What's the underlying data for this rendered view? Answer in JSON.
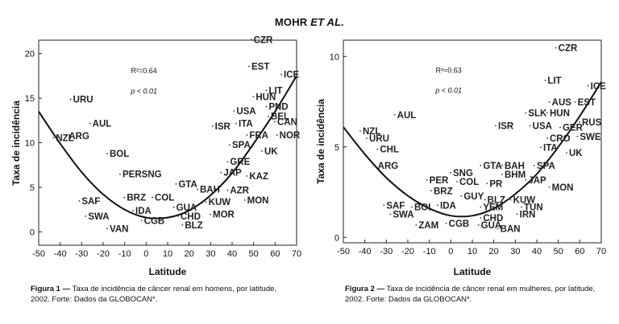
{
  "header": {
    "authors": "MOHR",
    "etal": "ET AL."
  },
  "captions": [
    {
      "label": "Figura 1 —",
      "text": "Taxa de incidência de câncer renal em homens, por latitude, 2002. Forte: Dados da GLOBOCAN*."
    },
    {
      "label": "Figura 2 —",
      "text": "Taxa de incidência de câncer renal em mulheres, por latitude, 2002. Forte: Dados da GLOBOCAN*."
    }
  ],
  "chart_data": [
    {
      "type": "scatter",
      "xlabel": "Latitude",
      "ylabel": "Taxa de incidência",
      "xlim": [
        -50,
        70
      ],
      "ylim": [
        -1.5,
        21.5
      ],
      "xticks": [
        -50,
        -40,
        -30,
        -20,
        -10,
        0,
        10,
        20,
        30,
        40,
        50,
        60,
        70
      ],
      "yticks": [
        0,
        5,
        10,
        15,
        20
      ],
      "stats": {
        "r2": "R²=0.64",
        "p": "p < 0.01"
      },
      "fit_curve": {
        "x": [
          -50,
          -40,
          -30,
          -20,
          -10,
          0,
          10,
          20,
          30,
          40,
          50,
          60,
          70
        ],
        "y": [
          13.5,
          9.9,
          6.7,
          4.2,
          2.5,
          1.6,
          1.6,
          2.4,
          4.1,
          6.6,
          9.9,
          13.5,
          17.5
        ]
      },
      "labeled_points": [
        {
          "label": "CZR",
          "x": 50,
          "y": 21.2
        },
        {
          "label": "EST",
          "x": 49,
          "y": 18.2
        },
        {
          "label": "ICE",
          "x": 64,
          "y": 17.3
        },
        {
          "label": "LIT",
          "x": 57,
          "y": 15.5
        },
        {
          "label": "HUN",
          "x": 51,
          "y": 14.8
        },
        {
          "label": "PND",
          "x": 57,
          "y": 13.7
        },
        {
          "label": "USA",
          "x": 42,
          "y": 13.2
        },
        {
          "label": "BEL",
          "x": 58,
          "y": 12.6
        },
        {
          "label": "CAN",
          "x": 61,
          "y": 12.0
        },
        {
          "label": "ISR",
          "x": 32,
          "y": 11.5
        },
        {
          "label": "ITA",
          "x": 43,
          "y": 11.8
        },
        {
          "label": "FRA",
          "x": 48,
          "y": 10.5
        },
        {
          "label": "NOR",
          "x": 62,
          "y": 10.5
        },
        {
          "label": "SPA",
          "x": 40,
          "y": 9.4
        },
        {
          "label": "UK",
          "x": 55,
          "y": 8.7
        },
        {
          "label": "GRE",
          "x": 39,
          "y": 7.5
        },
        {
          "label": "JAP",
          "x": 36,
          "y": 6.3
        },
        {
          "label": "KAZ",
          "x": 48,
          "y": 5.9
        },
        {
          "label": "GTA",
          "x": 15,
          "y": 5.0
        },
        {
          "label": "BAH",
          "x": 25,
          "y": 4.4
        },
        {
          "label": "AZR",
          "x": 39,
          "y": 4.3
        },
        {
          "label": "KUW",
          "x": 29,
          "y": 3.0
        },
        {
          "label": "MON",
          "x": 47,
          "y": 3.2
        },
        {
          "label": "GUA",
          "x": 14,
          "y": 2.4
        },
        {
          "label": "CHD",
          "x": 16,
          "y": 1.4
        },
        {
          "label": "MOR",
          "x": 31,
          "y": 1.6
        },
        {
          "label": "BLZ",
          "x": 18,
          "y": 0.4
        },
        {
          "label": "CGB",
          "x": -1,
          "y": 0.9
        },
        {
          "label": "IDA",
          "x": -5,
          "y": 2.0
        },
        {
          "label": "BRZ",
          "x": -9,
          "y": 3.5
        },
        {
          "label": "COL",
          "x": 4,
          "y": 3.5
        },
        {
          "label": "PERSNG",
          "x": -11,
          "y": 6.1
        },
        {
          "label": "BOL",
          "x": -17,
          "y": 8.4
        },
        {
          "label": "AUL",
          "x": -25,
          "y": 11.8
        },
        {
          "label": "NZL",
          "x": -42,
          "y": 10.2
        },
        {
          "label": "ARG",
          "x": -36,
          "y": 10.4
        },
        {
          "label": "URU",
          "x": -34,
          "y": 14.5
        },
        {
          "label": "SAF",
          "x": -30,
          "y": 3.1
        },
        {
          "label": "SWA",
          "x": -27,
          "y": 1.4
        },
        {
          "label": "VAN",
          "x": -17,
          "y": 0.0
        }
      ]
    },
    {
      "type": "scatter",
      "xlabel": "Latitude",
      "ylabel": "Taxa de incidência",
      "xlim": [
        -50,
        70
      ],
      "ylim": [
        -0.3,
        10.9
      ],
      "xticks": [
        -50,
        -40,
        -30,
        -20,
        -10,
        0,
        10,
        20,
        30,
        40,
        50,
        60,
        70
      ],
      "yticks": [
        0,
        5,
        10
      ],
      "stats": {
        "r2": "R²=0.63",
        "p": "p < 0.01"
      },
      "fit_curve": {
        "x": [
          -50,
          -40,
          -30,
          -20,
          -10,
          0,
          10,
          20,
          30,
          40,
          50,
          60,
          70
        ],
        "y": [
          6.1,
          4.6,
          3.3,
          2.3,
          1.6,
          1.2,
          1.2,
          1.6,
          2.4,
          3.5,
          5.0,
          6.7,
          8.6
        ]
      },
      "labeled_points": [
        {
          "label": "CZR",
          "x": 50,
          "y": 10.3
        },
        {
          "label": "LIT",
          "x": 45,
          "y": 8.5
        },
        {
          "label": "ICE",
          "x": 65,
          "y": 8.2
        },
        {
          "label": "AUS",
          "x": 47,
          "y": 7.3
        },
        {
          "label": "EST",
          "x": 59,
          "y": 7.3
        },
        {
          "label": "SLK",
          "x": 36,
          "y": 6.7
        },
        {
          "label": "HUN",
          "x": 46,
          "y": 6.7
        },
        {
          "label": "RUS",
          "x": 61,
          "y": 6.2
        },
        {
          "label": "ISR",
          "x": 22,
          "y": 6.0
        },
        {
          "label": "USA",
          "x": 38,
          "y": 6.0
        },
        {
          "label": "GER",
          "x": 52,
          "y": 5.9
        },
        {
          "label": "SWE",
          "x": 60,
          "y": 5.4
        },
        {
          "label": "CRO",
          "x": 46,
          "y": 5.3
        },
        {
          "label": "ITA",
          "x": 43,
          "y": 4.8
        },
        {
          "label": "UK",
          "x": 55,
          "y": 4.5
        },
        {
          "label": "AUL",
          "x": -25,
          "y": 6.6
        },
        {
          "label": "NZL",
          "x": -41,
          "y": 5.7
        },
        {
          "label": "URU",
          "x": -38,
          "y": 5.3
        },
        {
          "label": "CHL",
          "x": -33,
          "y": 4.7
        },
        {
          "label": "ARG",
          "x": -34,
          "y": 3.8
        },
        {
          "label": "GTA",
          "x": 15,
          "y": 3.8
        },
        {
          "label": "BAH",
          "x": 25,
          "y": 3.8
        },
        {
          "label": "SPA",
          "x": 40,
          "y": 3.8
        },
        {
          "label": "SNG",
          "x": 1,
          "y": 3.4
        },
        {
          "label": "BHM",
          "x": 25,
          "y": 3.3
        },
        {
          "label": "PER",
          "x": -10,
          "y": 3.0
        },
        {
          "label": "COL",
          "x": 4,
          "y": 2.9
        },
        {
          "label": "PR",
          "x": 18,
          "y": 2.8
        },
        {
          "label": "JAP",
          "x": 36,
          "y": 3.0
        },
        {
          "label": "MON",
          "x": 47,
          "y": 2.6
        },
        {
          "label": "BRZ",
          "x": -8,
          "y": 2.4
        },
        {
          "label": "GUY",
          "x": 6,
          "y": 2.1
        },
        {
          "label": "BLZ",
          "x": 17,
          "y": 1.9
        },
        {
          "label": "KUW",
          "x": 29,
          "y": 1.9
        },
        {
          "label": "SAF",
          "x": -30,
          "y": 1.6
        },
        {
          "label": "BOL",
          "x": -17,
          "y": 1.5
        },
        {
          "label": "IDA",
          "x": -5,
          "y": 1.6
        },
        {
          "label": "YEM",
          "x": 15,
          "y": 1.5
        },
        {
          "label": "TUN",
          "x": 34,
          "y": 1.5
        },
        {
          "label": "SWA",
          "x": -27,
          "y": 1.1
        },
        {
          "label": "IRN",
          "x": 32,
          "y": 1.1
        },
        {
          "label": "CHD",
          "x": 15,
          "y": 0.9
        },
        {
          "label": "ZAM",
          "x": -15,
          "y": 0.5
        },
        {
          "label": "CGB",
          "x": -1,
          "y": 0.6
        },
        {
          "label": "GUA",
          "x": 14,
          "y": 0.5
        },
        {
          "label": "BAN",
          "x": 23,
          "y": 0.3
        }
      ]
    }
  ]
}
